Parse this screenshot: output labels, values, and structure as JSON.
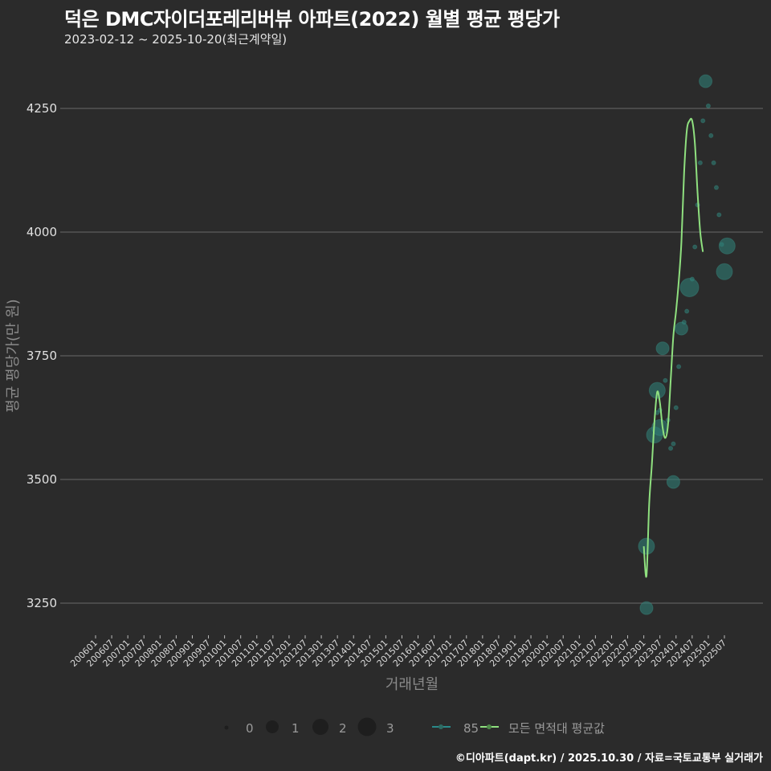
{
  "header": {
    "title": "덕은 DMC자이더포레리버뷰 아파트(2022) 월별 평균 평당가",
    "subtitle": "2023-02-12 ~ 2025-10-20(최근계약일)"
  },
  "footer": {
    "credit": "©디아파트(dapt.kr) / 2025.10.30 / 자료=국토교통부 실거래가"
  },
  "legend": {
    "size_labels": [
      "0",
      "1",
      "2",
      "3"
    ],
    "series_labels": [
      "85",
      "모든 면적대 평균값"
    ]
  },
  "colors": {
    "background": "#2b2b2b",
    "grid": "#6a6a6a",
    "bubble": "#2e7d74",
    "line": "#8fe07f",
    "series_85": "#2a8a8a"
  },
  "chart_data": {
    "type": "scatter",
    "title": "덕은 DMC자이더포레리버뷰 아파트(2022) 월별 평균 평당가",
    "subtitle": "2023-02-12 ~ 2025-10-20(최근계약일)",
    "xlabel": "거래년월",
    "ylabel": "평균 평당가(만 원)",
    "ylim": [
      3195,
      4370
    ],
    "yticks": [
      3250,
      3500,
      3750,
      4000,
      4250
    ],
    "xticks": [
      "200601",
      "200607",
      "200701",
      "200707",
      "200801",
      "200807",
      "200901",
      "200907",
      "201001",
      "201007",
      "201101",
      "201107",
      "201201",
      "201207",
      "201301",
      "201307",
      "201401",
      "201407",
      "201501",
      "201507",
      "201601",
      "201607",
      "201701",
      "201707",
      "201801",
      "201807",
      "201901",
      "201907",
      "202001",
      "202007",
      "202101",
      "202107",
      "202201",
      "202207",
      "202301",
      "202307",
      "202401",
      "202407",
      "202501",
      "202507"
    ],
    "grid": true,
    "legend_position": "bottom",
    "series": [
      {
        "name": "85",
        "kind": "bubble",
        "points": [
          {
            "x": "202302",
            "y": 3365,
            "size": 2
          },
          {
            "x": "202302",
            "y": 3240,
            "size": 1
          },
          {
            "x": "202305",
            "y": 3590,
            "size": 2
          },
          {
            "x": "202306",
            "y": 3680,
            "size": 2
          },
          {
            "x": "202306",
            "y": 3635,
            "size": 0
          },
          {
            "x": "202307",
            "y": 3605,
            "size": 2
          },
          {
            "x": "202307",
            "y": 3640,
            "size": 0
          },
          {
            "x": "202308",
            "y": 3765,
            "size": 1
          },
          {
            "x": "202309",
            "y": 3700,
            "size": 0
          },
          {
            "x": "202310",
            "y": 3620,
            "size": 0
          },
          {
            "x": "202311",
            "y": 3563,
            "size": 0
          },
          {
            "x": "202312",
            "y": 3495,
            "size": 1
          },
          {
            "x": "202312",
            "y": 3572,
            "size": 0
          },
          {
            "x": "202401",
            "y": 3645,
            "size": 0
          },
          {
            "x": "202402",
            "y": 3728,
            "size": 0
          },
          {
            "x": "202403",
            "y": 3805,
            "size": 1
          },
          {
            "x": "202404",
            "y": 3818,
            "size": 0
          },
          {
            "x": "202405",
            "y": 3840,
            "size": 0
          },
          {
            "x": "202406",
            "y": 3888,
            "size": 3
          },
          {
            "x": "202407",
            "y": 3905,
            "size": 0
          },
          {
            "x": "202408",
            "y": 3970,
            "size": 0
          },
          {
            "x": "202409",
            "y": 4055,
            "size": 0
          },
          {
            "x": "202410",
            "y": 4140,
            "size": 0
          },
          {
            "x": "202411",
            "y": 4225,
            "size": 0
          },
          {
            "x": "202412",
            "y": 4305,
            "size": 1
          },
          {
            "x": "202501",
            "y": 4255,
            "size": 0
          },
          {
            "x": "202502",
            "y": 4195,
            "size": 0
          },
          {
            "x": "202503",
            "y": 4140,
            "size": 0
          },
          {
            "x": "202504",
            "y": 4090,
            "size": 0
          },
          {
            "x": "202505",
            "y": 4035,
            "size": 0
          },
          {
            "x": "202506",
            "y": 3975,
            "size": 0
          },
          {
            "x": "202507",
            "y": 3920,
            "size": 2
          },
          {
            "x": "202508",
            "y": 3972,
            "size": 2
          }
        ]
      },
      {
        "name": "모든 면적대 평균값",
        "kind": "line",
        "points": [
          {
            "x": "202301",
            "y": 3365
          },
          {
            "x": "202302",
            "y": 3305
          },
          {
            "x": "202303",
            "y": 3450
          },
          {
            "x": "202304",
            "y": 3530
          },
          {
            "x": "202305",
            "y": 3620
          },
          {
            "x": "202306",
            "y": 3677
          },
          {
            "x": "202307",
            "y": 3655
          },
          {
            "x": "202308",
            "y": 3605
          },
          {
            "x": "202309",
            "y": 3584
          },
          {
            "x": "202310",
            "y": 3610
          },
          {
            "x": "202311",
            "y": 3700
          },
          {
            "x": "202312",
            "y": 3790
          },
          {
            "x": "202401",
            "y": 3840
          },
          {
            "x": "202402",
            "y": 3900
          },
          {
            "x": "202403",
            "y": 3980
          },
          {
            "x": "202404",
            "y": 4120
          },
          {
            "x": "202405",
            "y": 4205
          },
          {
            "x": "202406",
            "y": 4225
          },
          {
            "x": "202407",
            "y": 4225
          },
          {
            "x": "202408",
            "y": 4180
          },
          {
            "x": "202409",
            "y": 4080
          },
          {
            "x": "202410",
            "y": 4000
          },
          {
            "x": "202411",
            "y": 3960
          }
        ]
      }
    ]
  }
}
